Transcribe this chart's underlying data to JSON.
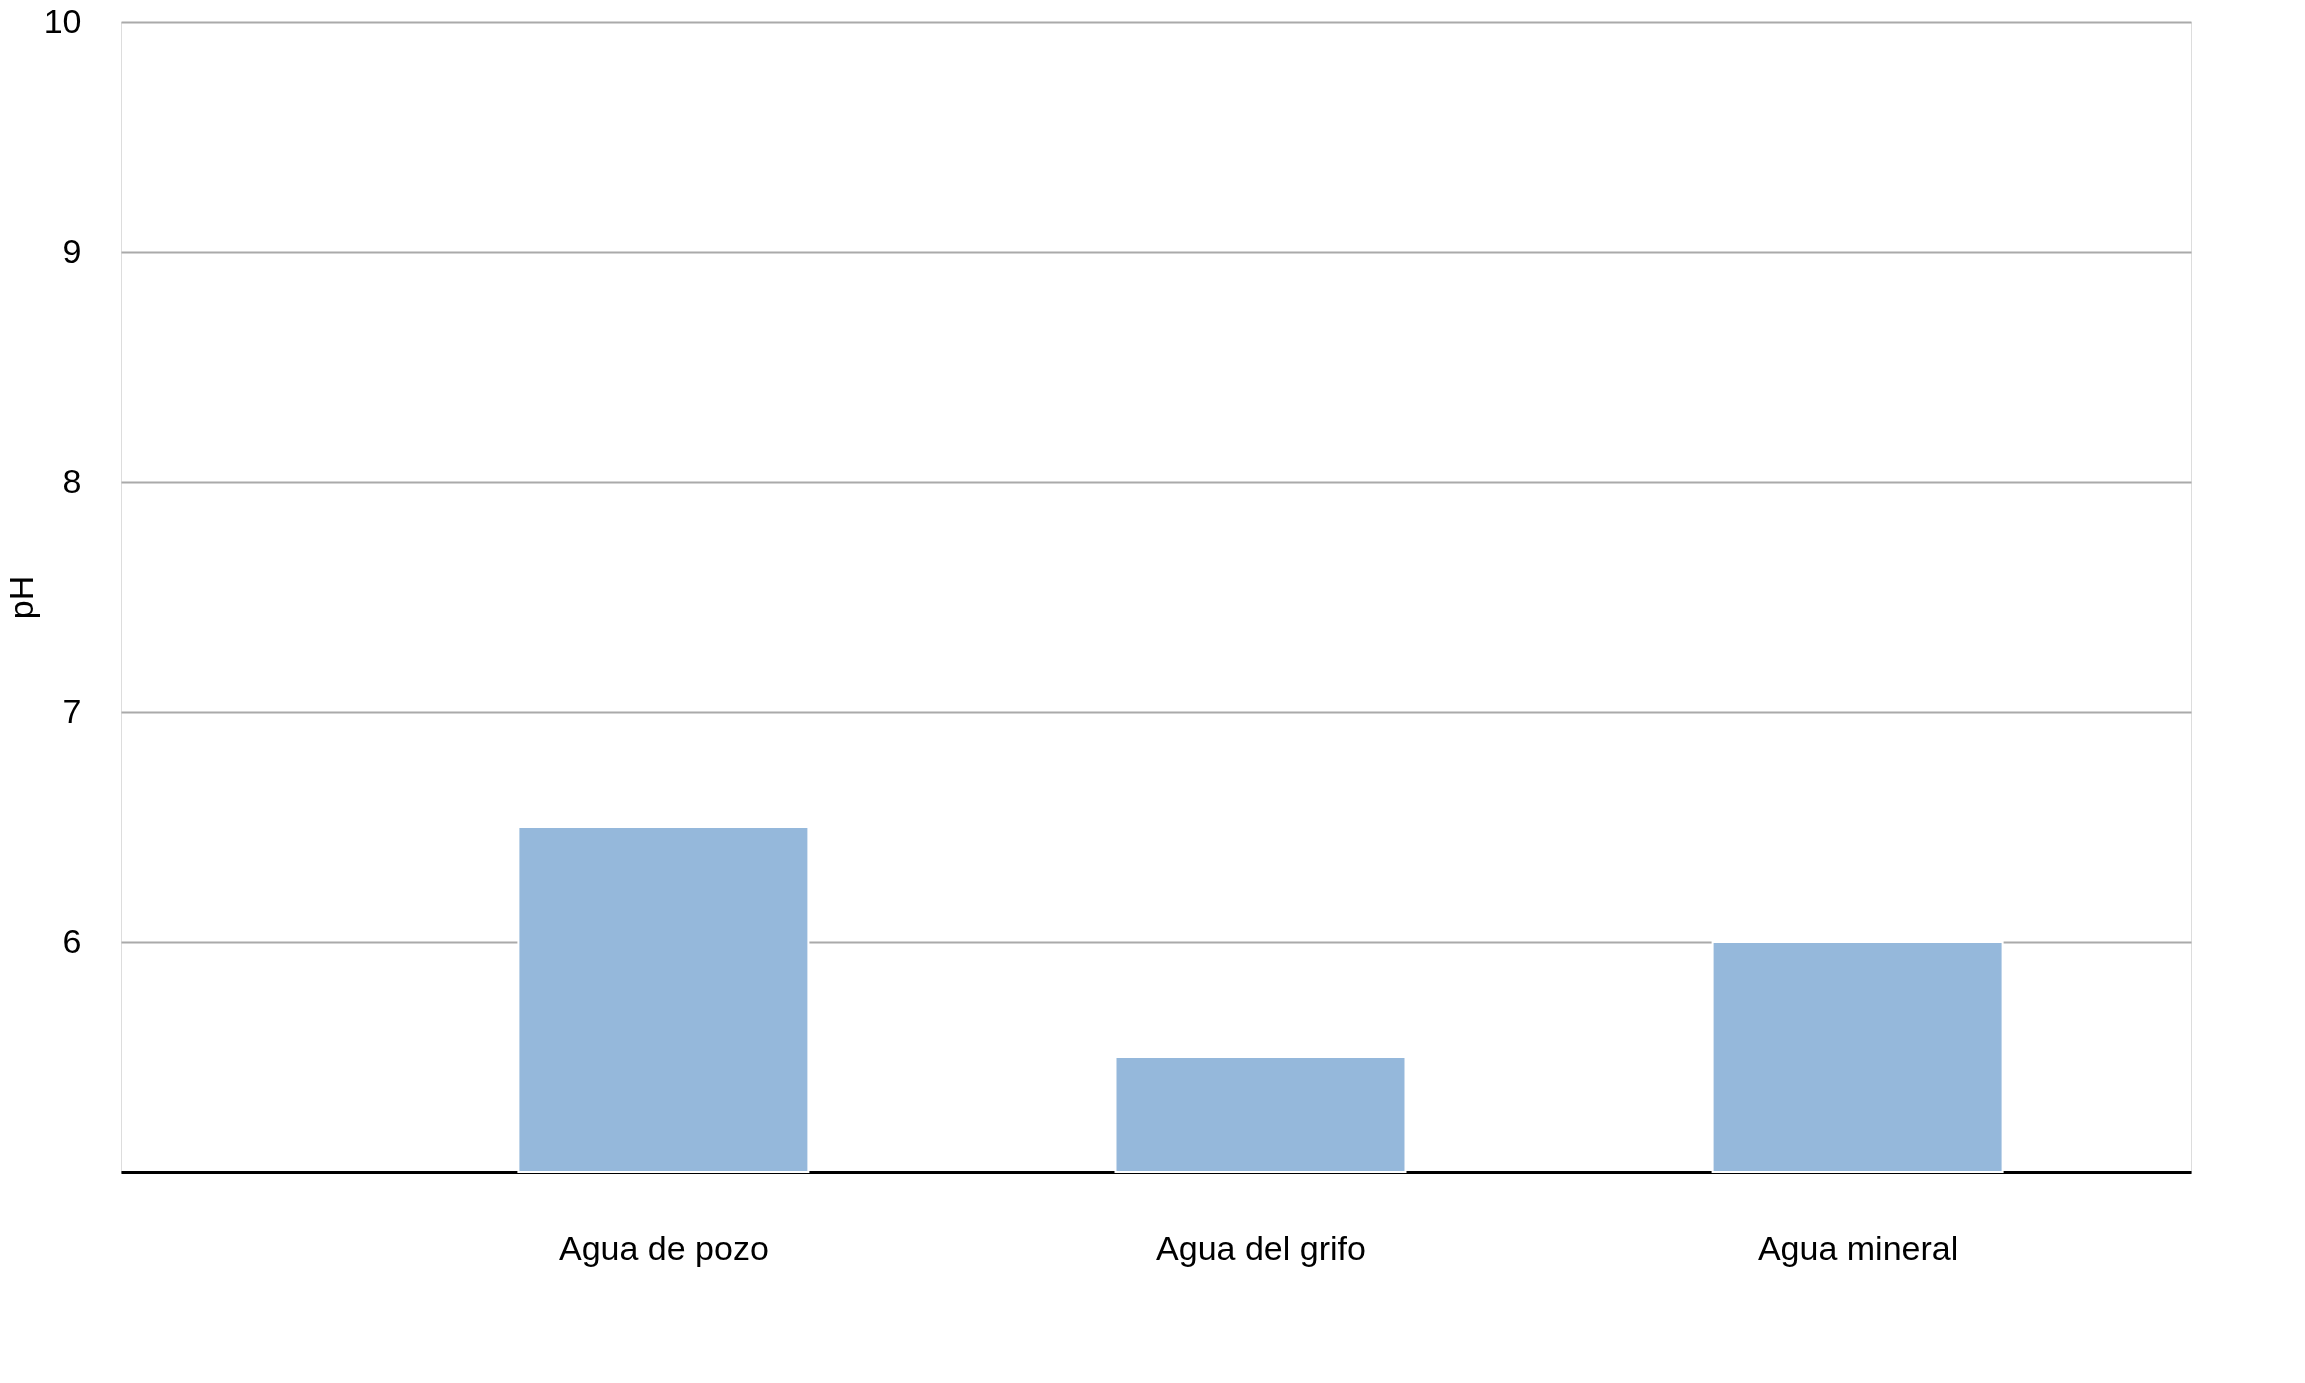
{
  "chart_data": {
    "type": "bar",
    "ylabel": "pH",
    "categories": [
      "Agua de pozo",
      "Agua del grifo",
      "Agua mineral"
    ],
    "values": [
      6.5,
      5.5,
      6.0
    ],
    "color": "#95b8db",
    "ylim": [
      5,
      10
    ],
    "yticks": [
      {
        "value": 5,
        "label": null
      },
      6,
      7,
      8,
      9,
      10
    ],
    "grid": "y"
  }
}
